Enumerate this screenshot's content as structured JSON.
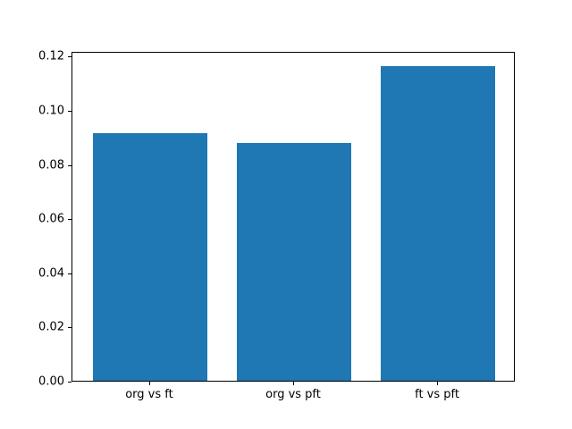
{
  "chart_data": {
    "type": "bar",
    "categories": [
      "org vs ft",
      "org vs pft",
      "ft vs pft"
    ],
    "values": [
      0.0913,
      0.0877,
      0.1162
    ],
    "title": "",
    "xlabel": "",
    "ylabel": "",
    "ylim": [
      0,
      0.1218
    ],
    "yticks": [
      0.0,
      0.02,
      0.04,
      0.06,
      0.08,
      0.1,
      0.12
    ],
    "ytick_labels": [
      "0.00",
      "0.02",
      "0.04",
      "0.06",
      "0.08",
      "0.10",
      "0.12"
    ],
    "bar_color": "#1f77b4",
    "spine_color": "#000000",
    "background_color": "#ffffff",
    "grid": false,
    "legend_position": "none"
  }
}
